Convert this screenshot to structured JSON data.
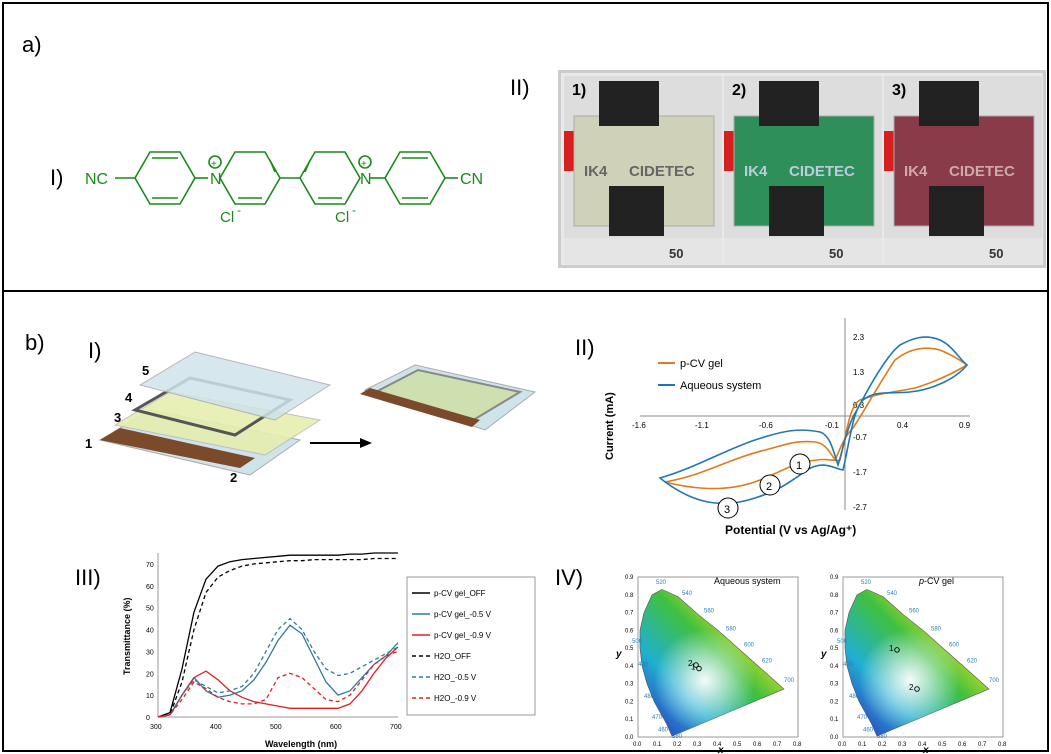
{
  "labels": {
    "a": "a)",
    "b": "b)",
    "aI": "I)",
    "aII": "II)",
    "bI": "I)",
    "bII": "II)",
    "bIII": "III)",
    "bIV": "IV)"
  },
  "molecule": {
    "left_group": "NC",
    "right_group": "CN",
    "counter_ion": "Cl",
    "charge": "-",
    "plus": "+",
    "color": "#1a8a1a"
  },
  "photos": {
    "panels": [
      {
        "num": "1)",
        "tint": "#cfd2b8"
      },
      {
        "num": "2)",
        "tint": "#2f8f5a"
      },
      {
        "num": "3)",
        "tint": "#8a3b4a"
      }
    ],
    "logo_text": "IK4",
    "logo_text2": "CIDETEC",
    "ruler": [
      "50"
    ]
  },
  "device": {
    "layers": [
      "1",
      "2",
      "3",
      "4",
      "5"
    ]
  },
  "cv": {
    "legend": [
      {
        "name": "p-CV gel",
        "color": "#e07b1a"
      },
      {
        "name": "Aqueous system",
        "color": "#1f77b4"
      }
    ],
    "xticks": [
      "-1.6",
      "-1.1",
      "-0.6",
      "-0.1",
      "0.4",
      "0.9"
    ],
    "yticks": [
      "2.3",
      "1.3",
      "0.3",
      "-0.7",
      "-1.7",
      "-2.7"
    ],
    "ylabel": "Current (mA)",
    "xlabel": "Potential (V vs Ag/Ag⁺)",
    "markers": [
      "1",
      "2",
      "3"
    ]
  },
  "chart_data": {
    "type": "line",
    "xlabel": "Wavelength (nm)",
    "ylabel": "Transmittance (%)",
    "xlim": [
      300,
      700
    ],
    "ylim": [
      0,
      75
    ],
    "xticks": [
      "300",
      "400",
      "500",
      "600",
      "700"
    ],
    "yticks": [
      "0",
      "10",
      "20",
      "30",
      "40",
      "50",
      "60",
      "70"
    ],
    "x": [
      300,
      320,
      340,
      360,
      380,
      400,
      420,
      440,
      460,
      480,
      500,
      520,
      540,
      560,
      580,
      600,
      620,
      640,
      660,
      680,
      700
    ],
    "series": [
      {
        "name": "p-CV gel_OFF",
        "color": "#000000",
        "dash": "solid",
        "values": [
          0,
          2,
          22,
          48,
          63,
          69,
          71,
          72,
          72.5,
          73,
          73.5,
          74,
          74,
          74,
          74,
          74,
          74.5,
          74.5,
          75,
          75,
          75
        ]
      },
      {
        "name": "p-CV gel_-0.5 V",
        "color": "#2e7d9a",
        "dash": "solid",
        "values": [
          0,
          1,
          10,
          18,
          12,
          9,
          10,
          12,
          17,
          25,
          35,
          42,
          38,
          27,
          16,
          10,
          12,
          18,
          24,
          28,
          34
        ]
      },
      {
        "name": "p-CV gel_-0.9 V",
        "color": "#e02020",
        "dash": "solid",
        "values": [
          0,
          1,
          10,
          18,
          21,
          17,
          12,
          9,
          7,
          6,
          5,
          4,
          4,
          4,
          4,
          4,
          6,
          12,
          20,
          27,
          32
        ]
      },
      {
        "name": "H2O_OFF",
        "color": "#000000",
        "dash": "dash",
        "values": [
          0,
          1,
          16,
          40,
          57,
          64,
          67,
          69,
          70,
          70.5,
          71,
          71.5,
          71.5,
          72,
          72,
          72,
          72,
          72,
          72.5,
          72.5,
          72.5
        ]
      },
      {
        "name": "H2O_-0.5 V",
        "color": "#2e7d9a",
        "dash": "dash",
        "values": [
          0,
          1,
          10,
          17,
          14,
          11,
          12,
          14,
          20,
          30,
          40,
          45,
          40,
          30,
          22,
          19,
          20,
          23,
          26,
          29,
          32
        ]
      },
      {
        "name": "H2O_-0.9 V",
        "color": "#e02020",
        "dash": "dash",
        "values": [
          0,
          1,
          8,
          16,
          13,
          9,
          7,
          6,
          6,
          8,
          18,
          20,
          18,
          13,
          8,
          7,
          10,
          17,
          24,
          28,
          30
        ]
      }
    ]
  },
  "cie": {
    "left_title": "Aqueous system",
    "right_title": "p-CV gel",
    "right_title_italic": "p",
    "xaxis": "x",
    "yaxis": "y",
    "xticks": [
      "0.0",
      "0.1",
      "0.2",
      "0.3",
      "0.4",
      "0.5",
      "0.6",
      "0.7",
      "0.8"
    ],
    "yticks": [
      "0.0",
      "0.1",
      "0.2",
      "0.3",
      "0.4",
      "0.5",
      "0.6",
      "0.7",
      "0.8",
      "0.9"
    ],
    "wavelengths": [
      "520",
      "540",
      "560",
      "580",
      "600",
      "620",
      "700",
      "500",
      "490",
      "480",
      "470",
      "460",
      "380"
    ],
    "left_points": [
      {
        "label": "2",
        "x": 0.29,
        "y": 0.405
      },
      {
        "label": "1",
        "x": 0.305,
        "y": 0.385
      }
    ],
    "right_points": [
      {
        "label": "1",
        "x": 0.27,
        "y": 0.49
      },
      {
        "label": "2",
        "x": 0.37,
        "y": 0.27
      }
    ]
  }
}
